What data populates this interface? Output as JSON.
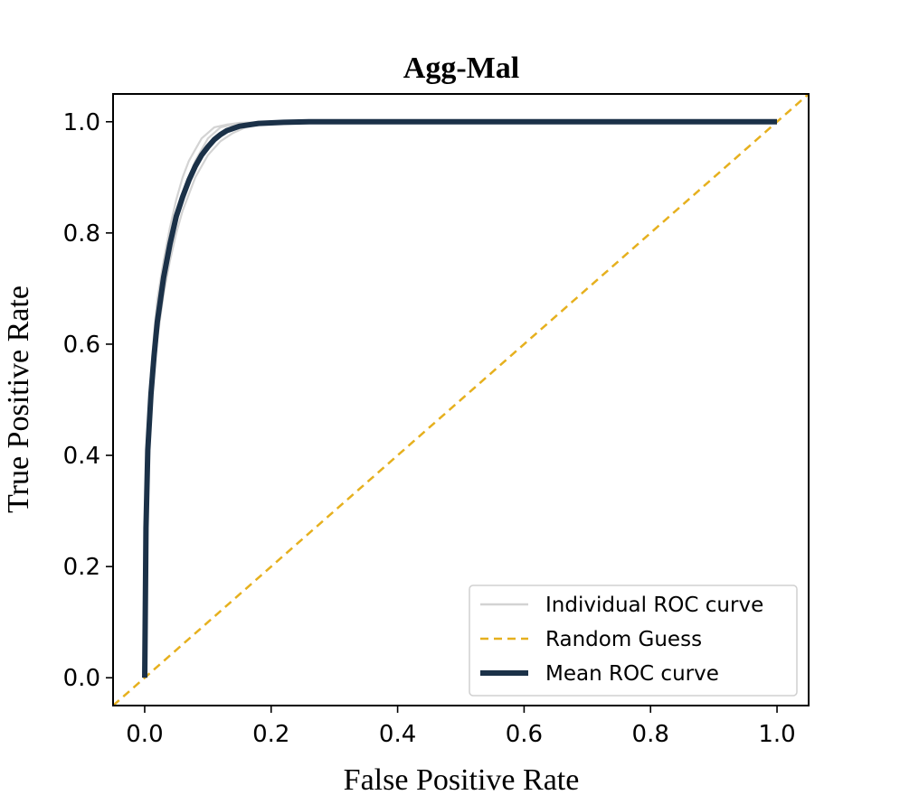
{
  "chart_data": {
    "type": "line",
    "title": "Agg-Mal",
    "xlabel": "False Positive Rate",
    "ylabel": "True Positive Rate",
    "xlim": [
      -0.05,
      1.05
    ],
    "ylim": [
      -0.05,
      1.05
    ],
    "xticks": [
      0.0,
      0.2,
      0.4,
      0.6,
      0.8,
      1.0
    ],
    "xtick_labels": [
      "0.0",
      "0.2",
      "0.4",
      "0.6",
      "0.8",
      "1.0"
    ],
    "yticks": [
      0.0,
      0.2,
      0.4,
      0.6,
      0.8,
      1.0
    ],
    "ytick_labels": [
      "0.0",
      "0.2",
      "0.4",
      "0.6",
      "0.8",
      "1.0"
    ],
    "legend_position": "lower-right",
    "series": [
      {
        "name": "Individual ROC curve",
        "style": "solid",
        "color": "#d3d3d3",
        "x": [
          0,
          0.002,
          0.005,
          0.01,
          0.015,
          0.02,
          0.03,
          0.04,
          0.05,
          0.06,
          0.07,
          0.08,
          0.09,
          0.1,
          0.11,
          0.12,
          0.14,
          0.16,
          0.2,
          0.25,
          0.3,
          1.0
        ],
        "y": [
          0,
          0.28,
          0.42,
          0.52,
          0.59,
          0.65,
          0.72,
          0.78,
          0.83,
          0.87,
          0.9,
          0.93,
          0.95,
          0.97,
          0.98,
          0.99,
          0.995,
          0.998,
          0.999,
          1.0,
          1.0,
          1.0
        ]
      },
      {
        "name": "",
        "style": "solid",
        "color": "#d3d3d3",
        "x": [
          0,
          0.002,
          0.005,
          0.01,
          0.015,
          0.02,
          0.03,
          0.04,
          0.05,
          0.06,
          0.07,
          0.08,
          0.09,
          0.1,
          0.12,
          0.14,
          0.16,
          0.18,
          0.22,
          0.27,
          0.35,
          1.0
        ],
        "y": [
          0,
          0.25,
          0.38,
          0.48,
          0.55,
          0.61,
          0.69,
          0.75,
          0.8,
          0.84,
          0.87,
          0.9,
          0.92,
          0.94,
          0.965,
          0.98,
          0.99,
          0.995,
          0.998,
          0.999,
          1.0,
          1.0
        ]
      },
      {
        "name": "",
        "style": "solid",
        "color": "#d3d3d3",
        "x": [
          0,
          0.002,
          0.005,
          0.01,
          0.015,
          0.02,
          0.03,
          0.04,
          0.05,
          0.06,
          0.07,
          0.08,
          0.09,
          0.1,
          0.11,
          0.13,
          0.15,
          0.18,
          0.22,
          0.3,
          1.0
        ],
        "y": [
          0,
          0.3,
          0.44,
          0.55,
          0.62,
          0.68,
          0.75,
          0.81,
          0.86,
          0.9,
          0.93,
          0.95,
          0.97,
          0.98,
          0.99,
          0.995,
          0.998,
          0.999,
          1.0,
          1.0,
          1.0
        ]
      },
      {
        "name": "",
        "style": "solid",
        "color": "#d3d3d3",
        "x": [
          0,
          0.002,
          0.005,
          0.01,
          0.015,
          0.02,
          0.03,
          0.04,
          0.05,
          0.06,
          0.07,
          0.08,
          0.09,
          0.1,
          0.12,
          0.14,
          0.16,
          0.2,
          0.25,
          0.3,
          1.0
        ],
        "y": [
          0,
          0.27,
          0.4,
          0.5,
          0.57,
          0.63,
          0.71,
          0.77,
          0.82,
          0.86,
          0.89,
          0.915,
          0.935,
          0.955,
          0.975,
          0.988,
          0.994,
          0.998,
          0.999,
          1.0,
          1.0
        ]
      },
      {
        "name": "Random Guess",
        "style": "dashed",
        "color": "#e6b01e",
        "x": [
          -0.05,
          1.05
        ],
        "y": [
          -0.05,
          1.05
        ]
      },
      {
        "name": "Mean ROC curve",
        "style": "solid",
        "color": "#1b3148",
        "x": [
          0,
          0.002,
          0.005,
          0.01,
          0.015,
          0.02,
          0.03,
          0.04,
          0.05,
          0.06,
          0.07,
          0.08,
          0.09,
          0.1,
          0.11,
          0.12,
          0.13,
          0.15,
          0.18,
          0.22,
          0.26,
          0.3,
          0.5,
          1.0
        ],
        "y": [
          0,
          0.27,
          0.41,
          0.51,
          0.58,
          0.64,
          0.72,
          0.78,
          0.83,
          0.865,
          0.895,
          0.92,
          0.94,
          0.955,
          0.968,
          0.977,
          0.984,
          0.992,
          0.997,
          0.999,
          1.0,
          1.0,
          1.0,
          1.0
        ]
      }
    ]
  }
}
